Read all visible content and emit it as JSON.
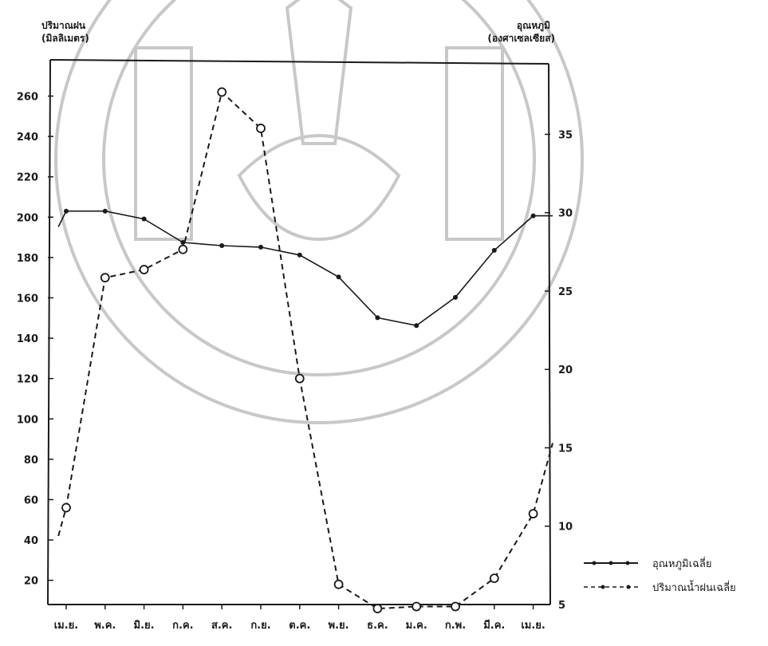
{
  "chart_data": {
    "type": "line",
    "categories": [
      "เม.ย.",
      "พ.ค.",
      "มิ.ย.",
      "ก.ค.",
      "ส.ค.",
      "ก.ย.",
      "ต.ค.",
      "พ.ย.",
      "ธ.ค.",
      "ม.ค.",
      "ก.พ.",
      "มี.ค.",
      "เม.ย."
    ],
    "y_left": {
      "label_line1": "ปริมาณฝน",
      "label_line2": "(มิลลิเมตร)",
      "ticks": [
        20,
        40,
        60,
        80,
        100,
        120,
        140,
        160,
        180,
        200,
        220,
        240,
        260
      ],
      "range": [
        8,
        276
      ]
    },
    "y_right": {
      "label_line1": "อุณหภูมิ",
      "label_line2": "(องศาเซลเซียส)",
      "ticks": [
        5,
        10,
        15,
        20,
        25,
        30,
        35
      ],
      "range": [
        5,
        39.5
      ]
    },
    "series": [
      {
        "name": "อุณหภูมิเฉลี่ย",
        "axis": "right",
        "style": "solid",
        "marker": "dot",
        "x": [
          -0.2,
          0,
          1,
          2,
          3,
          4,
          5,
          6,
          7,
          8,
          9,
          10,
          11,
          12,
          12.5
        ],
        "values": [
          29.1,
          30.1,
          30.1,
          29.6,
          28.1,
          27.9,
          27.8,
          27.3,
          25.9,
          23.3,
          22.8,
          24.6,
          27.6,
          29.8,
          29.8
        ]
      },
      {
        "name": "ปริมาณน้ำฝนเฉลี่ย",
        "axis": "left",
        "style": "dashed",
        "marker": "circle",
        "x": [
          -0.2,
          0,
          1,
          2,
          3,
          4,
          5,
          6,
          7,
          8,
          9,
          10,
          11,
          12,
          12.5
        ],
        "values": [
          42,
          56,
          170,
          174,
          184,
          262,
          244,
          120,
          18,
          6,
          7,
          7,
          21,
          53,
          88
        ]
      }
    ]
  }
}
